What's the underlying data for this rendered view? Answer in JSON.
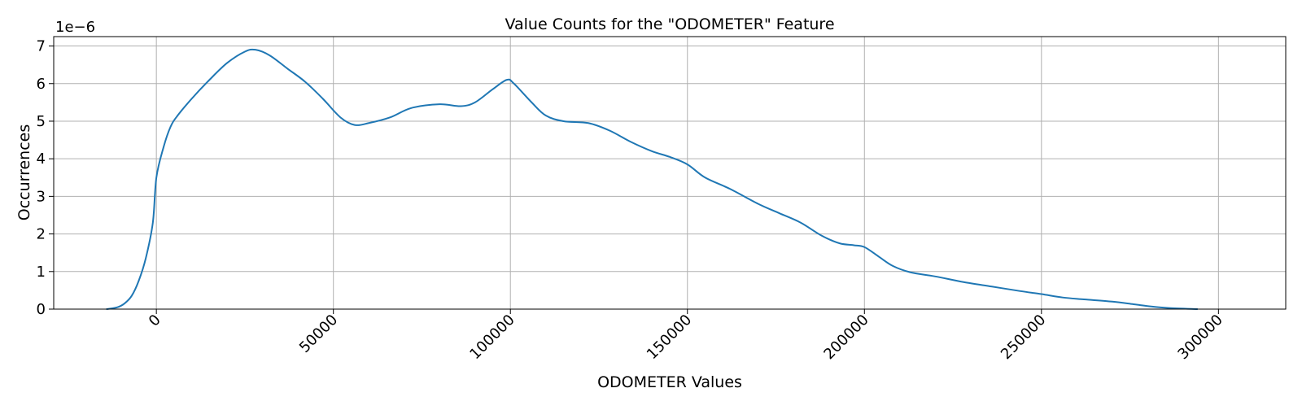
{
  "chart_data": {
    "type": "line",
    "title": "Value Counts for the \"ODOMETER\" Feature",
    "xlabel": "ODOMETER Values",
    "ylabel": "Occurrences",
    "y_offset_label": "1e−6",
    "xlim": [
      -29000,
      319000
    ],
    "ylim": [
      0,
      7.25
    ],
    "x_ticks": [
      0,
      50000,
      100000,
      150000,
      200000,
      250000,
      300000
    ],
    "x_tick_labels": [
      "0",
      "50000",
      "100000",
      "150000",
      "200000",
      "250000",
      "300000"
    ],
    "y_ticks": [
      0,
      1,
      2,
      3,
      4,
      5,
      6,
      7
    ],
    "y_tick_labels": [
      "0",
      "1",
      "2",
      "3",
      "4",
      "5",
      "6",
      "7"
    ],
    "x_tick_rotation": 45,
    "grid": true,
    "line_color": "#1f77b4",
    "series": [
      {
        "points": [
          [
            -14000,
            0.0
          ],
          [
            -11000,
            0.05
          ],
          [
            -9000,
            0.15
          ],
          [
            -7000,
            0.35
          ],
          [
            -5000,
            0.75
          ],
          [
            -3000,
            1.35
          ],
          [
            -1000,
            2.3
          ],
          [
            0,
            3.5
          ],
          [
            2000,
            4.3
          ],
          [
            4000,
            4.85
          ],
          [
            6000,
            5.15
          ],
          [
            10000,
            5.6
          ],
          [
            15000,
            6.1
          ],
          [
            20000,
            6.55
          ],
          [
            25000,
            6.85
          ],
          [
            28000,
            6.9
          ],
          [
            32000,
            6.75
          ],
          [
            37000,
            6.4
          ],
          [
            42000,
            6.05
          ],
          [
            47000,
            5.6
          ],
          [
            52000,
            5.1
          ],
          [
            56000,
            4.9
          ],
          [
            60000,
            4.95
          ],
          [
            66000,
            5.1
          ],
          [
            72000,
            5.35
          ],
          [
            80000,
            5.45
          ],
          [
            86000,
            5.4
          ],
          [
            90000,
            5.5
          ],
          [
            95000,
            5.85
          ],
          [
            99000,
            6.1
          ],
          [
            101000,
            6.0
          ],
          [
            106000,
            5.5
          ],
          [
            110000,
            5.15
          ],
          [
            115000,
            5.0
          ],
          [
            122000,
            4.95
          ],
          [
            128000,
            4.75
          ],
          [
            134000,
            4.45
          ],
          [
            140000,
            4.2
          ],
          [
            145000,
            4.05
          ],
          [
            150000,
            3.85
          ],
          [
            155000,
            3.5
          ],
          [
            162000,
            3.2
          ],
          [
            170000,
            2.8
          ],
          [
            176000,
            2.55
          ],
          [
            182000,
            2.3
          ],
          [
            188000,
            1.95
          ],
          [
            193000,
            1.75
          ],
          [
            197000,
            1.7
          ],
          [
            200000,
            1.65
          ],
          [
            204000,
            1.4
          ],
          [
            208000,
            1.15
          ],
          [
            213000,
            0.98
          ],
          [
            220000,
            0.87
          ],
          [
            228000,
            0.72
          ],
          [
            236000,
            0.6
          ],
          [
            244000,
            0.48
          ],
          [
            250000,
            0.4
          ],
          [
            256000,
            0.31
          ],
          [
            262000,
            0.26
          ],
          [
            270000,
            0.2
          ],
          [
            276000,
            0.13
          ],
          [
            281000,
            0.07
          ],
          [
            286000,
            0.03
          ],
          [
            294000,
            0.0
          ]
        ]
      }
    ]
  }
}
